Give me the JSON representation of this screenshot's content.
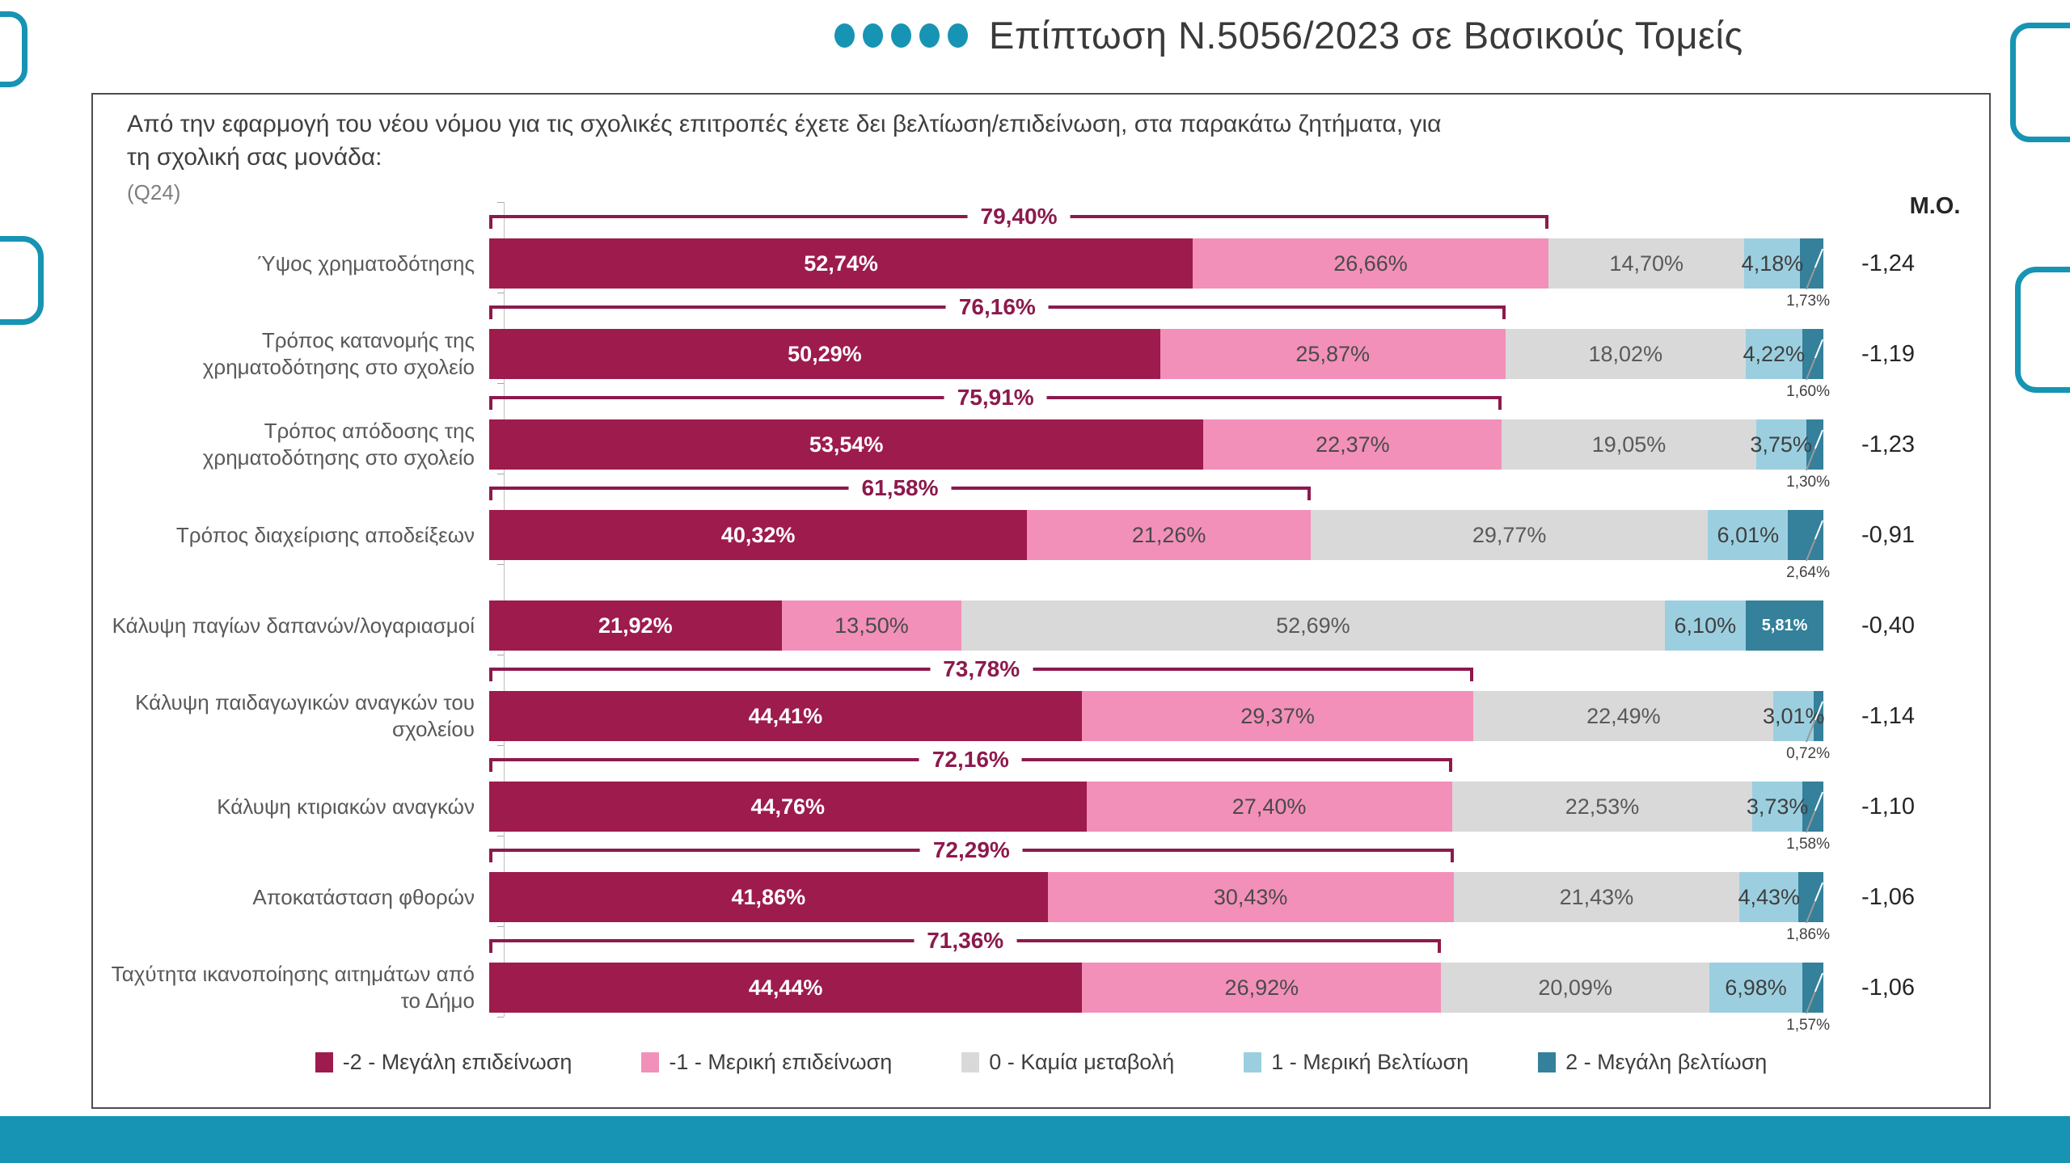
{
  "title": {
    "text": "Επίπτωση Ν.5056/2023 σε Βασικούς Τομείς",
    "dot_count": 5
  },
  "question": {
    "line1": "Από την εφαρμογή του νέου νόμου για τις σχολικές επιτροπές έχετε δει βελτίωση/επιδείνωση, στα παρακάτω ζητήματα, για",
    "line2": "τη σχολική σας μονάδα:",
    "code": "(Q24)"
  },
  "mo_header": "Μ.Ο.",
  "colors": {
    "maroon": "#9E1B4D",
    "pink": "#F290B9",
    "gray": "#D9D9D9",
    "lightblue": "#9BCFE0",
    "teal": "#35809B",
    "accent": "#1794B3",
    "bracket": "#8C1A4D"
  },
  "legend": [
    {
      "label": "-2 - Μεγάλη επιδείνωση",
      "color": "#9E1B4D"
    },
    {
      "label": "-1 - Μερική επιδείνωση",
      "color": "#F290B9"
    },
    {
      "label": "0 - Καμία μεταβολή",
      "color": "#D9D9D9"
    },
    {
      "label": "1 - Μερική Βελτίωση",
      "color": "#9BCFE0"
    },
    {
      "label": "2 - Μεγάλη βελτίωση",
      "color": "#35809B"
    }
  ],
  "chart_data": {
    "type": "bar",
    "orientation": "horizontal",
    "stacked": true,
    "x_range_pct": [
      0,
      100
    ],
    "series_names": [
      "-2 - Μεγάλη επιδείνωση",
      "-1 - Μερική επιδείνωση",
      "0 - Καμία μεταβολή",
      "1 - Μερική Βελτίωση",
      "2 - Μεγάλη βελτίωση"
    ],
    "bracket_note": "bracket shows sum of the two deterioration segments",
    "rows": [
      {
        "category": "Ύψος χρηματοδότησης",
        "values": [
          52.74,
          26.66,
          14.7,
          4.18,
          1.73
        ],
        "labels": [
          "52,74%",
          "26,66%",
          "14,70%",
          "4,18%",
          "1,73%"
        ],
        "bracket": "79,40%",
        "mean": "-1,24"
      },
      {
        "category": "Τρόπος κατανομής της χρηματοδότησης στο σχολείο",
        "values": [
          50.29,
          25.87,
          18.02,
          4.22,
          1.6
        ],
        "labels": [
          "50,29%",
          "25,87%",
          "18,02%",
          "4,22%",
          "1,60%"
        ],
        "bracket": "76,16%",
        "mean": "-1,19"
      },
      {
        "category": "Τρόπος απόδοσης της χρηματοδότησης στο σχολείο",
        "values": [
          53.54,
          22.37,
          19.05,
          3.75,
          1.3
        ],
        "labels": [
          "53,54%",
          "22,37%",
          "19,05%",
          "3,75%",
          "1,30%"
        ],
        "bracket": "75,91%",
        "mean": "-1,23"
      },
      {
        "category": "Τρόπος διαχείρισης αποδείξεων",
        "values": [
          40.32,
          21.26,
          29.77,
          6.01,
          2.64
        ],
        "labels": [
          "40,32%",
          "21,26%",
          "29,77%",
          "6,01%",
          "2,64%"
        ],
        "bracket": "61,58%",
        "mean": "-0,91"
      },
      {
        "category": "Κάλυψη παγίων δαπανών/λογαριασμοί",
        "values": [
          21.92,
          13.5,
          52.69,
          6.1,
          5.81
        ],
        "labels": [
          "21,92%",
          "13,50%",
          "52,69%",
          "6,10%",
          "5,81%"
        ],
        "bracket": null,
        "mean": "-0,40"
      },
      {
        "category": "Κάλυψη παιδαγωγικών αναγκών του σχολείου",
        "values": [
          44.41,
          29.37,
          22.49,
          3.01,
          0.72
        ],
        "labels": [
          "44,41%",
          "29,37%",
          "22,49%",
          "3,01%",
          "0,72%"
        ],
        "bracket": "73,78%",
        "mean": "-1,14"
      },
      {
        "category": "Κάλυψη κτιριακών αναγκών",
        "values": [
          44.76,
          27.4,
          22.53,
          3.73,
          1.58
        ],
        "labels": [
          "44,76%",
          "27,40%",
          "22,53%",
          "3,73%",
          "1,58%"
        ],
        "bracket": "72,16%",
        "mean": "-1,10"
      },
      {
        "category": "Αποκατάσταση φθορών",
        "values": [
          41.86,
          30.43,
          21.43,
          4.43,
          1.86
        ],
        "labels": [
          "41,86%",
          "30,43%",
          "21,43%",
          "4,43%",
          "1,86%"
        ],
        "bracket": "72,29%",
        "mean": "-1,06"
      },
      {
        "category": "Ταχύτητα ικανοποίησης αιτημάτων από το Δήμο",
        "values": [
          44.44,
          26.92,
          20.09,
          6.98,
          1.57
        ],
        "labels": [
          "44,44%",
          "26,92%",
          "20,09%",
          "6,98%",
          "1,57%"
        ],
        "bracket": "71,36%",
        "mean": "-1,06"
      }
    ]
  }
}
